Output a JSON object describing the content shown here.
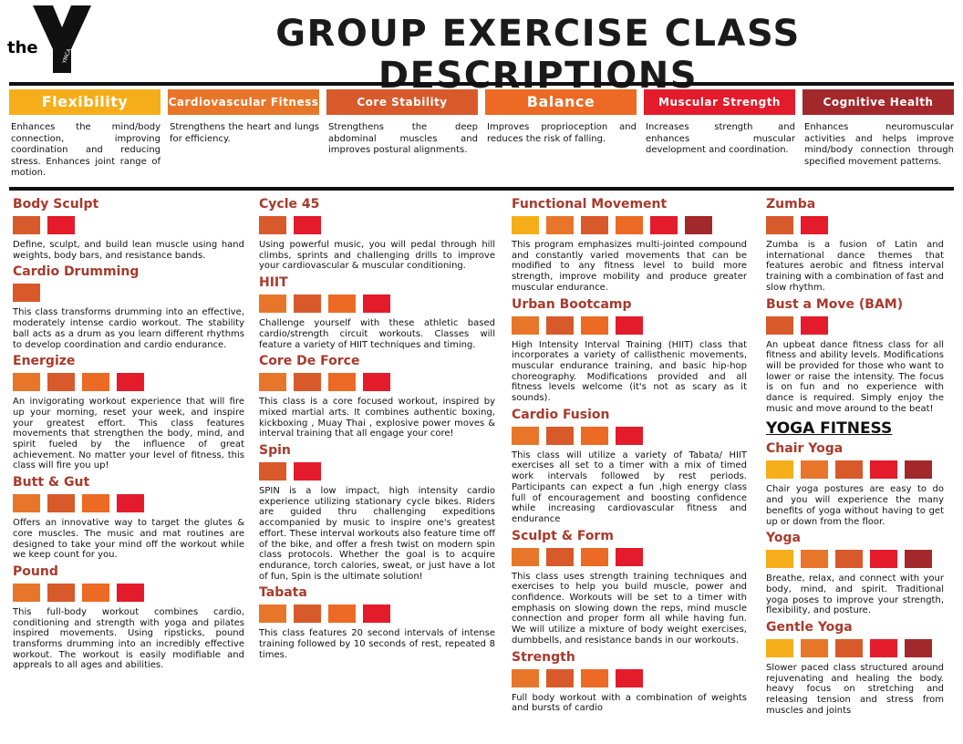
{
  "header": {
    "logo_word": "the",
    "logo_mark": "YMCA",
    "title": "GROUP EXERCISE CLASS DESCRIPTIONS"
  },
  "categories": [
    {
      "name": "Flexibility",
      "color": "#f5ae1a",
      "description": "Enhances the mind/body connection, improving coordination and reducing stress. Enhances joint range of motion."
    },
    {
      "name": "Cardiovascular Fitness",
      "color": "#e8762a",
      "description": "Strengthens the heart and lungs for efficiency."
    },
    {
      "name": "Core Stability",
      "color": "#d85a2b",
      "description": "Strengthens the deep abdominal muscles and improves postural alignments."
    },
    {
      "name": "Balance",
      "color": "#ec6a24",
      "description": "Improves proprioception and reduces the risk of falling."
    },
    {
      "name": "Muscular Strength",
      "color": "#e31b2b",
      "description": "Increases strength and enhances muscular development and coordination."
    },
    {
      "name": "Cognitive Health",
      "color": "#a3282c",
      "description": "Enhances neuromuscular activities and helps improve mind/body connection through specified movement patterns."
    }
  ],
  "columns": [
    [
      {
        "name": "Body Sculpt",
        "colors": [
          "#d85a2b",
          "#e31b2b"
        ],
        "description": "Define, sculpt, and build lean muscle using hand weights, body bars, and resistance bands."
      },
      {
        "name": "Cardio Drumming",
        "colors": [
          "#d85a2b"
        ],
        "description": "This class transforms drumming into an effective, moderately intense cardio workout. The stability ball acts as a drum as you learn different rhythms to develop coordination and cardio endurance."
      },
      {
        "name": "Energize",
        "colors": [
          "#e8762a",
          "#d85a2b",
          "#ec6a24",
          "#e31b2b"
        ],
        "description": "An invigorating workout experience that will fire up your morning, reset your week, and inspire your greatest effort. This class features movements that strengthen the body, mind, and spirit fueled by the influence of great achievement. No matter your level of fitness, this class will fire you up!"
      },
      {
        "name": "Butt & Gut",
        "colors": [
          "#e8762a",
          "#d85a2b",
          "#ec6a24",
          "#e31b2b"
        ],
        "description": "Offers an innovative way to target the glutes & core muscles. The music and mat routines are designed to take your mind off the workout while we keep count for you."
      },
      {
        "name": "Pound",
        "colors": [
          "#e8762a",
          "#d85a2b",
          "#ec6a24",
          "#e31b2b"
        ],
        "description": "This full-body workout combines cardio, conditioning and strength with yoga and pilates inspired movements. Using ripsticks, pound transforms drumming into an incredibly effective workout. The workout is easily modifiable and appreals to all ages and abilities."
      }
    ],
    [
      {
        "name": "Cycle 45",
        "colors": [
          "#d85a2b",
          "#e31b2b"
        ],
        "description": "Using powerful music, you will pedal through hill climbs, sprints and challenging drills to improve your cardiovascular & muscular conditioning."
      },
      {
        "name": "HIIT",
        "colors": [
          "#e8762a",
          "#d85a2b",
          "#ec6a24",
          "#e31b2b"
        ],
        "description": "Challenge yourself with these athletic based cardio/strength circuit workouts. Classes will feature a variety of HIIT techniques and timing."
      },
      {
        "name": "Core De Force",
        "colors": [
          "#e8762a",
          "#d85a2b",
          "#ec6a24",
          "#e31b2b"
        ],
        "description": "This class is a core focused workout, inspired by mixed martial arts. It combines authentic boxing, kickboxing , Muay Thai , explosive power moves & interval training that all engage your core!"
      },
      {
        "name": "Spin",
        "colors": [
          "#d85a2b",
          "#e31b2b"
        ],
        "description": "SPIN is a low impact, high intensity cardio experience utilizing stationary cycle bikes. Riders are guided thru challenging expeditions accompanied by music to inspire one's greatest effort. These interval workouts also feature time off of the bike, and offer a fresh twist on modern spin class protocols. Whether the goal is to acquire endurance, torch calories, sweat, or just have a lot of fun, Spin is the ultimate solution!"
      },
      {
        "name": "Tabata",
        "colors": [
          "#e8762a",
          "#d85a2b",
          "#ec6a24",
          "#e31b2b"
        ],
        "description": "This class features 20 second intervals of intense training followed by 10 seconds of rest, repeated 8 times."
      }
    ],
    [
      {
        "name": "Functional Movement",
        "colors": [
          "#f5ae1a",
          "#e8762a",
          "#d85a2b",
          "#ec6a24",
          "#e31b2b",
          "#a3282c"
        ],
        "description": "This program emphasizes multi-jointed compound and constantly varied movements that can be modified to any fitness level to build more strength, improve mobility and produce greater muscular endurance."
      },
      {
        "name": "Urban Bootcamp",
        "colors": [
          "#e8762a",
          "#d85a2b",
          "#ec6a24",
          "#e31b2b"
        ],
        "description": "High Intensity Interval Training (HIIT) class that incorporates a variety of callisthenic movements, muscular endurance training, and basic hip-hop choreography. Modifications provided and all fitness levels welcome (it's not as scary as it sounds)."
      },
      {
        "name": "Cardio Fusion",
        "colors": [
          "#e8762a",
          "#d85a2b",
          "#ec6a24",
          "#e31b2b"
        ],
        "description": "This class will utilize a variety of Tabata/ HIIT exercises all set to a timer with a mix of timed work intervals followed by rest periods. Participants can expect a fun ,high energy class full of encouragement and boosting confidence while increasing cardiovascular fitness and endurance"
      },
      {
        "name": "Sculpt & Form",
        "colors": [
          "#e8762a",
          "#d85a2b",
          "#ec6a24",
          "#e31b2b"
        ],
        "description": "This class uses strength training techniques and exercises to help you build muscle, power and confidence. Workouts will be set to a timer with emphasis on slowing down the reps, mind muscle connection and proper form all while having fun. We will utilize a mixture of body weight exercises, dumbbells, and resistance bands in our workouts."
      },
      {
        "name": "Strength",
        "colors": [
          "#e8762a",
          "#d85a2b",
          "#ec6a24",
          "#e31b2b"
        ],
        "description": "Full body workout with a combination of weights and bursts of cardio"
      }
    ],
    [
      {
        "name": "Zumba",
        "colors": [
          "#d85a2b",
          "#e31b2b"
        ],
        "description": "Zumba is a fusion of Latin and international dance themes that features aerobic and fitness interval training with a combination of fast and slow rhythm."
      },
      {
        "name": "Bust a Move (BAM)",
        "colors": [
          "#d85a2b",
          "#e31b2b"
        ],
        "description": "An upbeat dance fitness class for all fitness and ability levels. Modifications will be provided for those who want to lower or raise the intensity. The focus is on fun and no experience with dance is required. Simply enjoy the music and move around to the beat!"
      },
      {
        "section": "YOGA FITNESS"
      },
      {
        "name": "Chair Yoga",
        "colors": [
          "#f5ae1a",
          "#e8762a",
          "#d85a2b",
          "#e31b2b",
          "#a3282c"
        ],
        "description": "Chair yoga postures are easy to do and you will experience the many benefits of yoga without having to get up or down from the floor."
      },
      {
        "name": "Yoga",
        "colors": [
          "#f5ae1a",
          "#e8762a",
          "#d85a2b",
          "#e31b2b",
          "#a3282c"
        ],
        "description": "Breathe, relax, and connect with your body, mind, and spirit. Traditional yoga poses to improve your strength, flexibility, and posture."
      },
      {
        "name": "Gentle Yoga",
        "colors": [
          "#f5ae1a",
          "#e8762a",
          "#d85a2b",
          "#e31b2b",
          "#a3282c"
        ],
        "description": "Slower paced class structured around rejuvenating and healing the body. heavy focus on stretching and releasing tension and stress from muscles and joints"
      }
    ]
  ]
}
